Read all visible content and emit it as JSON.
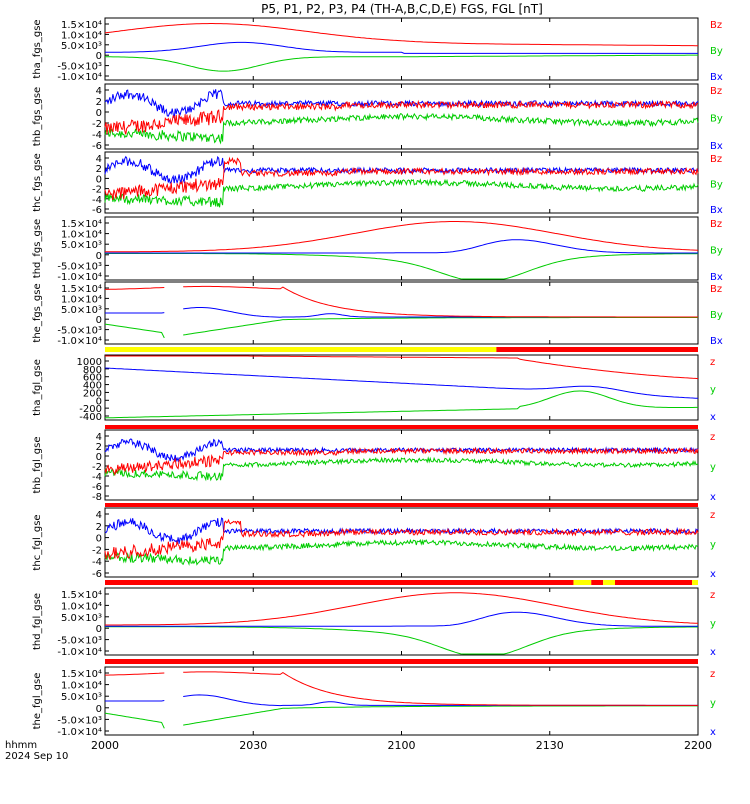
{
  "chart_data": {
    "type": "line",
    "title": "P5, P1, P2, P3, P4 (TH-A,B,C,D,E) FGS, FGL [nT]",
    "xaxis": {
      "label": "hhmm",
      "date": "2024 Sep 10",
      "ticks": [
        "2000",
        "2030",
        "2100",
        "2130",
        "2200"
      ],
      "range_hhmm": [
        "2000",
        "2200"
      ]
    },
    "colors": {
      "x": "#0000ff",
      "y": "#00cc00",
      "z": "#ff0000",
      "bar_fast": "#ffff00",
      "bar_slow": "#ff0000",
      "text": "#000000"
    },
    "panels": [
      {
        "ylabel": "tha_fgs_gse",
        "yticks": [
          "1.5×10⁴",
          "1.0×10⁴",
          "5.0×10³",
          "0",
          "-5.0×10³",
          "-1.0×10⁴"
        ],
        "ylim": [
          -12000,
          16000
        ],
        "legend": [
          "Bz",
          "By",
          "Bx"
        ],
        "shape": "smooth-A"
      },
      {
        "ylabel": "thb_fgs_gse",
        "yticks": [
          "4",
          "2",
          "0",
          "-2",
          "-4",
          "-6"
        ],
        "ylim": [
          -6,
          4
        ],
        "legend": [
          "Bz",
          "By",
          "Bx"
        ],
        "shape": "noisy-B"
      },
      {
        "ylabel": "thc_fgs_gse",
        "yticks": [
          "4",
          "2",
          "0",
          "-2",
          "-4",
          "-6"
        ],
        "ylim": [
          -6,
          4
        ],
        "legend": [
          "Bz",
          "By",
          "Bx"
        ],
        "shape": "noisy-C"
      },
      {
        "ylabel": "thd_fgs_gse",
        "yticks": [
          "1.5×10⁴",
          "1.0×10⁴",
          "5.0×10³",
          "0",
          "-5.0×10³",
          "-1.0×10⁴"
        ],
        "ylim": [
          -12000,
          16000
        ],
        "legend": [
          "Bz",
          "By",
          "Bx"
        ],
        "shape": "smooth-D"
      },
      {
        "ylabel": "the_fgs_gse",
        "yticks": [
          "1.5×10⁴",
          "1.0×10⁴",
          "5.0×10³",
          "0",
          "-5.0×10³",
          "-1.0×10⁴"
        ],
        "ylim": [
          -12000,
          16000
        ],
        "legend": [
          "Bz",
          "By",
          "Bx"
        ],
        "shape": "smooth-E"
      },
      {
        "ylabel": "tha_fgl_gse",
        "yticks": [
          "1000",
          "800",
          "600",
          "400",
          "200",
          "0",
          "-200",
          "-400"
        ],
        "ylim": [
          -450,
          1050
        ],
        "legend": [
          "z",
          "y",
          "x"
        ],
        "shape": "smooth-AL"
      },
      {
        "ylabel": "thb_fgl_gse",
        "yticks": [
          "4",
          "2",
          "0",
          "-2",
          "-4",
          "-6",
          "-8"
        ],
        "ylim": [
          -9,
          5
        ],
        "legend": [
          "z",
          "y",
          "x"
        ],
        "shape": "noisy-B"
      },
      {
        "ylabel": "thc_fgl_gse",
        "yticks": [
          "4",
          "2",
          "0",
          "-2",
          "-4",
          "-6"
        ],
        "ylim": [
          -7,
          5
        ],
        "legend": [
          "z",
          "y",
          "x"
        ],
        "shape": "noisy-C"
      },
      {
        "ylabel": "thd_fgl_gse",
        "yticks": [
          "1.5×10⁴",
          "1.0×10⁴",
          "5.0×10³",
          "0",
          "-5.0×10³",
          "-1.0×10⁴"
        ],
        "ylim": [
          -12000,
          16000
        ],
        "legend": [
          "z",
          "y",
          "x"
        ],
        "shape": "smooth-D"
      },
      {
        "ylabel": "the_fgl_gse",
        "yticks": [
          "1.5×10⁴",
          "1.0×10⁴",
          "5.0×10³",
          "0",
          "-5.0×10³",
          "-1.0×10⁴"
        ],
        "ylim": [
          -12000,
          16000
        ],
        "legend": [
          "z",
          "y",
          "x"
        ],
        "shape": "smooth-E"
      }
    ],
    "mode_bars": [
      {
        "after_panel": 4,
        "segments": [
          {
            "from": 0,
            "to": 0.66,
            "color": "bar_fast"
          },
          {
            "from": 0.66,
            "to": 1,
            "color": "bar_slow"
          }
        ]
      },
      {
        "after_panel": 5,
        "segments": [
          {
            "from": 0,
            "to": 1,
            "color": "bar_slow"
          }
        ]
      },
      {
        "after_panel": 6,
        "segments": [
          {
            "from": 0,
            "to": 1,
            "color": "bar_slow"
          }
        ]
      },
      {
        "after_panel": 7,
        "segments": [
          {
            "from": 0,
            "to": 0.79,
            "color": "bar_slow"
          },
          {
            "from": 0.79,
            "to": 0.82,
            "color": "bar_fast"
          },
          {
            "from": 0.82,
            "to": 0.84,
            "color": "bar_slow"
          },
          {
            "from": 0.84,
            "to": 0.86,
            "color": "bar_fast"
          },
          {
            "from": 0.86,
            "to": 0.99,
            "color": "bar_slow"
          },
          {
            "from": 0.99,
            "to": 1,
            "color": "bar_fast"
          }
        ]
      },
      {
        "after_panel": 8,
        "segments": [
          {
            "from": 0,
            "to": 1,
            "color": "bar_slow"
          }
        ]
      }
    ]
  }
}
